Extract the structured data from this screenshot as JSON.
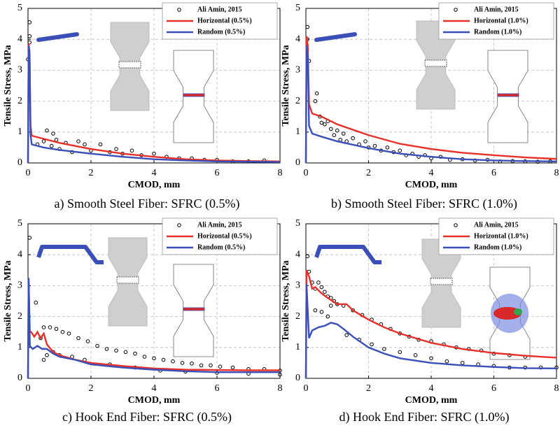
{
  "chart_data": [
    {
      "type": "line",
      "caption": "a) Smooth Steel Fiber: SFRC (0.5%)",
      "xlabel": "CMOD, mm",
      "ylabel": "Tensile Stress, MPa",
      "xlim": [
        0,
        8
      ],
      "xticks": [
        0,
        2,
        4,
        6,
        8
      ],
      "ylim": [
        0,
        5
      ],
      "yticks": [
        0,
        1,
        2,
        3,
        4,
        5
      ],
      "grid": true,
      "legend": "upper right",
      "series": [
        {
          "name": "Ali Amin, 2015",
          "color": "#000000",
          "mode": "markers",
          "x": [
            0.0,
            0.05,
            0.05,
            0.05,
            0.3,
            0.5,
            0.6,
            0.75,
            0.8,
            0.9,
            1.0,
            1.2,
            1.4,
            1.6,
            1.8,
            2.0,
            2.3,
            2.6,
            2.8,
            3.0,
            3.3,
            3.6,
            4.0,
            4.4,
            4.8,
            5.2,
            5.6,
            6.0,
            6.5,
            7.0,
            7.5
          ],
          "values": [
            3.35,
            4.55,
            4.1,
            3.9,
            0.6,
            0.7,
            1.05,
            0.55,
            0.95,
            0.75,
            0.45,
            0.65,
            0.35,
            0.7,
            0.6,
            0.4,
            0.6,
            0.35,
            0.45,
            0.3,
            0.4,
            0.25,
            0.3,
            0.2,
            0.15,
            0.15,
            0.1,
            0.1,
            0.05,
            0.05,
            0.08
          ]
        },
        {
          "name": "Horizontal (0.5%)",
          "color": "#e8302a",
          "mode": "lines",
          "x": [
            0,
            0.02,
            0.05,
            0.08,
            0.12,
            0.5,
            1,
            2,
            3,
            4,
            5,
            6,
            7,
            8
          ],
          "values": [
            0,
            3.85,
            3.6,
            1.2,
            0.88,
            0.78,
            0.65,
            0.45,
            0.3,
            0.2,
            0.12,
            0.08,
            0.06,
            0.05
          ]
        },
        {
          "name": "Random (0.5%)",
          "color": "#3b4fb8",
          "mode": "lines",
          "x": [
            0,
            0.02,
            0.05,
            0.08,
            0.12,
            0.5,
            1,
            2,
            3,
            4,
            5,
            6,
            7,
            8
          ],
          "values": [
            0,
            3.8,
            3.5,
            0.9,
            0.6,
            0.5,
            0.42,
            0.3,
            0.2,
            0.12,
            0.08,
            0.05,
            0.04,
            0.03
          ]
        }
      ]
    },
    {
      "type": "line",
      "caption": "b) Smooth Steel Fiber: SFRC (1.0%)",
      "xlabel": "CMOD, mm",
      "ylabel": "Tensile Stress, MPa",
      "xlim": [
        0,
        8
      ],
      "xticks": [
        0,
        2,
        4,
        6,
        8
      ],
      "ylim": [
        0,
        5
      ],
      "yticks": [
        0,
        1,
        2,
        3,
        4,
        5
      ],
      "grid": true,
      "legend": "upper right",
      "series": [
        {
          "name": "Ali Amin, 2015",
          "color": "#000000",
          "mode": "markers",
          "x": [
            0.05,
            0.05,
            0.1,
            0.3,
            0.35,
            0.45,
            0.5,
            0.6,
            0.7,
            0.8,
            0.9,
            1.0,
            1.1,
            1.2,
            1.3,
            1.5,
            1.7,
            1.9,
            2.0,
            2.2,
            2.4,
            2.6,
            2.8,
            3.0,
            3.2,
            3.4,
            3.6,
            3.8,
            4.0,
            4.3,
            4.6,
            5.0,
            5.4,
            5.8,
            6.2,
            6.6,
            7.0,
            7.4,
            7.8
          ],
          "values": [
            4.4,
            4.0,
            3.3,
            2.0,
            2.25,
            1.5,
            1.3,
            1.25,
            1.35,
            1.1,
            0.9,
            1.05,
            0.75,
            0.95,
            0.7,
            0.8,
            0.6,
            0.7,
            0.5,
            0.55,
            0.4,
            0.5,
            0.35,
            0.4,
            0.25,
            0.3,
            0.2,
            0.25,
            0.15,
            0.2,
            0.1,
            0.12,
            0.08,
            0.1,
            0.05,
            0.06,
            0.05,
            0.04,
            0.05
          ]
        },
        {
          "name": "Horizontal (1.0%)",
          "color": "#e8302a",
          "mode": "lines",
          "x": [
            0,
            0.02,
            0.06,
            0.1,
            0.2,
            0.5,
            1,
            2,
            3,
            4,
            5,
            6,
            7,
            8
          ],
          "values": [
            0,
            4.1,
            3.8,
            1.9,
            1.6,
            1.5,
            1.25,
            0.9,
            0.62,
            0.45,
            0.33,
            0.25,
            0.18,
            0.13
          ]
        },
        {
          "name": "Random (1.0%)",
          "color": "#3b4fb8",
          "mode": "lines",
          "x": [
            0,
            0.02,
            0.06,
            0.1,
            0.2,
            0.5,
            1,
            2,
            3,
            4,
            5,
            6,
            7,
            8
          ],
          "values": [
            0,
            3.8,
            3.5,
            1.2,
            0.95,
            0.85,
            0.7,
            0.48,
            0.3,
            0.2,
            0.12,
            0.08,
            0.06,
            0.05
          ]
        }
      ]
    },
    {
      "type": "line",
      "caption": "c) Hook End Fiber: SFRC (0.5%)",
      "xlabel": "CMOD, mm",
      "ylabel": "Tensile Stress, MPa",
      "xlim": [
        0,
        8
      ],
      "xticks": [
        0,
        2,
        4,
        6,
        8
      ],
      "ylim": [
        0,
        5
      ],
      "yticks": [
        0,
        1,
        2,
        3,
        4,
        5
      ],
      "grid": true,
      "legend": "upper right",
      "series": [
        {
          "name": "Ali Amin, 2015",
          "color": "#000000",
          "mode": "markers",
          "x": [
            0.05,
            0.25,
            0.4,
            0.5,
            0.6,
            0.8,
            1.0,
            0.5,
            0.7,
            0.9,
            1.1,
            1.3,
            1.6,
            1.9,
            2.2,
            2.5,
            2.8,
            3.1,
            3.4,
            3.7,
            4.0,
            4.3,
            4.6,
            4.9,
            5.2,
            5.5,
            5.8,
            6.1,
            6.5,
            7.0,
            7.5,
            8.0,
            1.4,
            1.8,
            2.6,
            3.4,
            4.2,
            5.0,
            6.0,
            7.0,
            8.0
          ],
          "values": [
            4.55,
            2.45,
            1.3,
            0.6,
            0.75,
            0.85,
            0.75,
            1.65,
            1.65,
            1.6,
            1.5,
            1.45,
            1.3,
            1.2,
            1.05,
            0.95,
            0.9,
            0.85,
            0.8,
            0.7,
            0.65,
            0.6,
            0.55,
            0.5,
            0.48,
            0.42,
            0.42,
            0.38,
            0.35,
            0.3,
            0.3,
            0.25,
            0.7,
            0.6,
            0.45,
            0.35,
            0.25,
            0.22,
            0.18,
            0.15,
            0.12
          ]
        },
        {
          "name": "Horizontal (0.5%)",
          "color": "#e8302a",
          "mode": "lines",
          "x": [
            0,
            0.02,
            0.06,
            0.1,
            0.2,
            0.3,
            0.4,
            0.5,
            0.6,
            0.8,
            1.0,
            1.5,
            2,
            3,
            4,
            5,
            6,
            7,
            8
          ],
          "values": [
            0,
            3.2,
            1.5,
            1.5,
            1.35,
            1.5,
            1.3,
            1.45,
            1.1,
            0.85,
            0.75,
            0.6,
            0.5,
            0.4,
            0.32,
            0.28,
            0.27,
            0.26,
            0.26
          ]
        },
        {
          "name": "Random (0.5%)",
          "color": "#3b4fb8",
          "mode": "lines",
          "x": [
            0,
            0.02,
            0.06,
            0.15,
            0.3,
            0.45,
            0.6,
            0.8,
            1.0,
            1.5,
            2,
            3,
            4,
            5,
            6,
            7,
            8
          ],
          "values": [
            0,
            3.25,
            1.05,
            0.95,
            1.05,
            0.95,
            0.95,
            0.8,
            0.7,
            0.6,
            0.45,
            0.35,
            0.28,
            0.23,
            0.2,
            0.2,
            0.2
          ]
        }
      ]
    },
    {
      "type": "line",
      "caption": "d) Hook End Fiber: SFRC (1.0%)",
      "xlabel": "CMOD, mm",
      "ylabel": "Tensile Stress, MPa",
      "xlim": [
        0,
        8
      ],
      "xticks": [
        0,
        2,
        4,
        6,
        8
      ],
      "ylim": [
        0,
        5
      ],
      "yticks": [
        0,
        1,
        2,
        3,
        4,
        5
      ],
      "grid": true,
      "legend": "upper right",
      "series": [
        {
          "name": "Ali Amin, 2015",
          "color": "#000000",
          "mode": "markers",
          "x": [
            0.05,
            0.1,
            0.2,
            0.3,
            0.4,
            0.5,
            0.6,
            0.7,
            0.8,
            0.9,
            1.0,
            0.3,
            0.5,
            0.7,
            0.8,
            1.2,
            1.5,
            1.8,
            2.1,
            2.4,
            2.7,
            3.0,
            3.3,
            3.6,
            4.0,
            4.4,
            4.8,
            5.2,
            5.6,
            6.0,
            6.5,
            7.0,
            1.3,
            1.7,
            2.1,
            2.5,
            3.0,
            3.5,
            4.0,
            4.5,
            5.0,
            5.5,
            6.0,
            6.5,
            7.0,
            7.5,
            8.0
          ],
          "values": [
            3.95,
            3.45,
            3.1,
            2.9,
            3.1,
            2.95,
            2.8,
            2.65,
            2.6,
            2.5,
            2.4,
            2.2,
            2.15,
            2.0,
            2.35,
            2.35,
            2.2,
            2.05,
            1.9,
            1.75,
            1.6,
            1.45,
            1.35,
            1.25,
            1.2,
            1.1,
            1.0,
            0.95,
            0.9,
            0.8,
            0.75,
            0.7,
            1.4,
            1.25,
            1.1,
            0.95,
            0.85,
            0.75,
            0.65,
            0.55,
            0.5,
            0.45,
            0.4,
            0.35,
            0.35,
            0.35,
            0.35
          ]
        },
        {
          "name": "Horizontal (1.0%)",
          "color": "#e8302a",
          "mode": "lines",
          "x": [
            0,
            0.02,
            0.1,
            0.2,
            0.3,
            0.5,
            0.7,
            1.0,
            1.3,
            1.5,
            2,
            2.5,
            3,
            4,
            5,
            6,
            7,
            8
          ],
          "values": [
            0,
            3.5,
            3.3,
            2.9,
            2.95,
            2.75,
            2.6,
            2.4,
            2.4,
            2.2,
            1.9,
            1.65,
            1.45,
            1.15,
            0.95,
            0.82,
            0.73,
            0.67
          ]
        },
        {
          "name": "Random (1.0%)",
          "color": "#3b4fb8",
          "mode": "lines",
          "x": [
            0,
            0.02,
            0.1,
            0.2,
            0.4,
            0.6,
            0.8,
            1.0,
            1.2,
            1.5,
            2,
            2.5,
            3,
            4,
            5,
            6,
            7,
            8
          ],
          "values": [
            0,
            3.05,
            1.3,
            1.55,
            1.65,
            1.7,
            1.8,
            1.75,
            1.6,
            1.35,
            1.0,
            0.8,
            0.65,
            0.5,
            0.42,
            0.37,
            0.33,
            0.32
          ]
        }
      ]
    }
  ]
}
